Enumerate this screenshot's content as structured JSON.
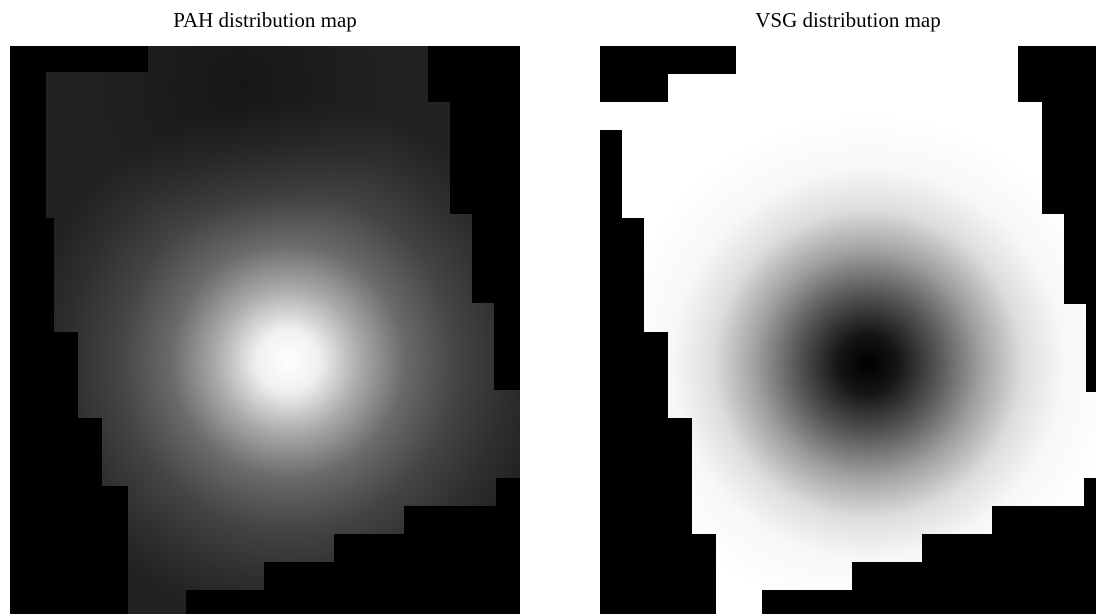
{
  "figure": {
    "panels": [
      {
        "title": "PAH distribution map",
        "colormap": "gray",
        "background": "#000000",
        "peak_color": "#ffffff"
      },
      {
        "title": "VSG distribution map",
        "colormap": "gray",
        "background": "#000000",
        "peak_color": "#000000"
      }
    ]
  }
}
